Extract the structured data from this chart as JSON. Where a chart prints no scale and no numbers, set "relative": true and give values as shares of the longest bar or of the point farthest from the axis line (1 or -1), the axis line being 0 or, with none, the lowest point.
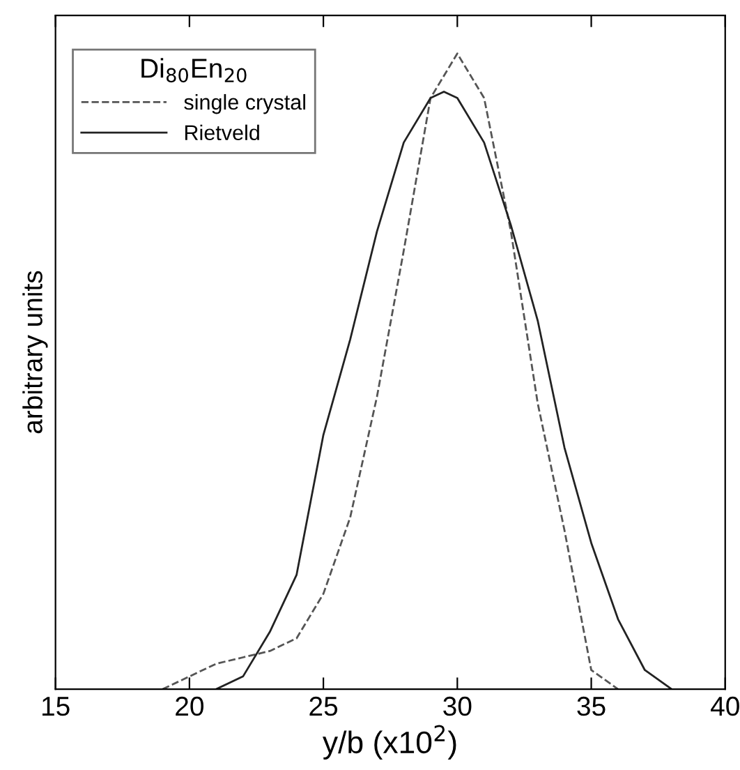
{
  "chart_data": {
    "type": "line",
    "relative": true,
    "xlabel": "y/b (x10$^{2}$)",
    "ylabel": "arbitrary units",
    "legend_title": "Di$_{80}$En$_{20}$",
    "legend": "top left",
    "grid": false,
    "xlim": [
      15,
      40
    ],
    "xticks": [
      15,
      20,
      25,
      30,
      35,
      40
    ],
    "series": [
      {
        "name": "single crystal",
        "color": "#555555",
        "line_style": "dashed",
        "x": [
          19,
          20,
          21,
          22,
          23,
          24,
          25,
          26,
          27,
          28,
          29,
          30,
          31,
          32,
          33,
          34,
          35,
          36
        ],
        "values": [
          0,
          0.02,
          0.04,
          0.05,
          0.06,
          0.08,
          0.15,
          0.27,
          0.46,
          0.69,
          0.93,
          1,
          0.93,
          0.72,
          0.45,
          0.25,
          0.03,
          0
        ]
      },
      {
        "name": "Rietveld",
        "color": "#222222",
        "line_style": "solid",
        "x": [
          21,
          22,
          23,
          24,
          25,
          26,
          27,
          28,
          29,
          29.5,
          30,
          31,
          32,
          33,
          34,
          35,
          36,
          37,
          38
        ],
        "values": [
          0,
          0.02,
          0.09,
          0.18,
          0.4,
          0.55,
          0.72,
          0.86,
          0.93,
          0.94,
          0.93,
          0.86,
          0.73,
          0.58,
          0.38,
          0.23,
          0.11,
          0.03,
          0
        ]
      }
    ]
  }
}
